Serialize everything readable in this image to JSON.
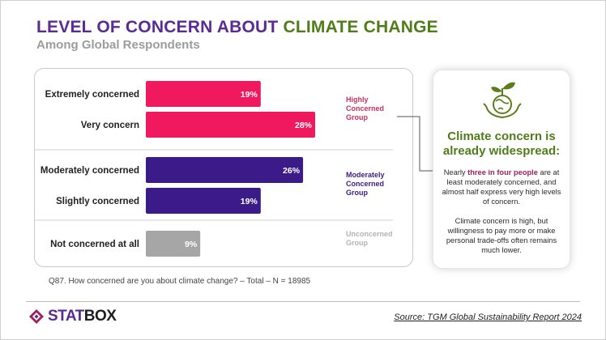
{
  "header": {
    "title_part1": "LEVEL OF CONCERN ABOUT",
    "title_part2": "CLIMATE CHANGE",
    "subtitle": "Among Global Respondents"
  },
  "colors": {
    "purple": "#5b2a93",
    "green": "#4f7d19",
    "pink": "#f0185f",
    "indigo": "#3b1b87",
    "gray": "#a6a6a6"
  },
  "chart_data": {
    "type": "bar",
    "orientation": "horizontal",
    "categories": [
      "Extremely concerned",
      "Very concern",
      "Moderately concerned",
      "Slightly concerned",
      "Not concerned at all"
    ],
    "values": [
      19,
      28,
      26,
      19,
      9
    ],
    "value_labels": [
      "19%",
      "28%",
      "26%",
      "19%",
      "9%"
    ],
    "unit": "%",
    "xlim": [
      0,
      30
    ],
    "groups": [
      {
        "label": "Highly Concerned Group",
        "lines": [
          "Highly",
          "Concerned",
          "Group"
        ],
        "members": [
          0,
          1
        ],
        "color": "#c6325f"
      },
      {
        "label": "Moderately Concerned Group",
        "lines": [
          "Moderately",
          "Concerned",
          "Group"
        ],
        "members": [
          2,
          3
        ],
        "color": "#3b1b87"
      },
      {
        "label": "Unconcerned Group",
        "lines": [
          "Unconcerned",
          "Group"
        ],
        "members": [
          4
        ],
        "color": "#b3b3b3"
      }
    ],
    "bar_colors": [
      "#f0185f",
      "#f0185f",
      "#3b1b87",
      "#3b1b87",
      "#a6a6a6"
    ]
  },
  "card": {
    "icon": "plant-globe-icon",
    "headline": "Climate concern is already widespread:",
    "text1_before": "Nearly ",
    "text1_highlight": "three in four people",
    "text1_after": " are at least moderately concerned, and almost half express very high levels of concern.",
    "text2": "Climate concern is high, but willingness to pay more or make personal trade-offs often remains much lower."
  },
  "footer": {
    "question": "Q87. How concerned are you about climate change? – Total – N = 18985",
    "brand_part1": "STAT",
    "brand_part2": "BOX",
    "source": "Source: TGM Global Sustainability Report 2024"
  }
}
